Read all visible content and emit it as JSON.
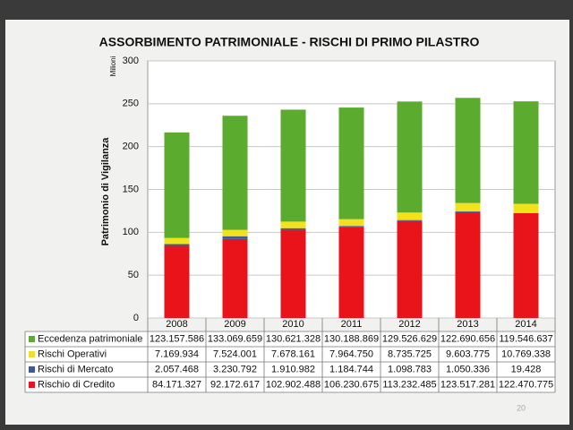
{
  "chart_data": {
    "type": "stacked_bar",
    "title": "ASSORBIMENTO PATRIMONIALE - RISCHI DI PRIMO PILASTRO",
    "y_label": "Patrimonio di Vigilanza",
    "units_label": "Milioni",
    "categories": [
      "2008",
      "2009",
      "2010",
      "2011",
      "2012",
      "2013",
      "2014"
    ],
    "series": [
      {
        "name": "Eccedenza patrimoniale",
        "color": "#5aab2e",
        "values": [
          123.157586,
          133.069659,
          130.621328,
          130.188869,
          129.526629,
          122.690656,
          119.546637
        ],
        "value_labels": [
          "123.157.586",
          "133.069.659",
          "130.621.328",
          "130.188.869",
          "129.526.629",
          "122.690.656",
          "119.546.637"
        ]
      },
      {
        "name": "Rischi Operativi",
        "color": "#f2e21c",
        "values": [
          7.169934,
          7.524001,
          7.678161,
          7.96475,
          8.735725,
          9.603775,
          10.769338
        ],
        "value_labels": [
          "7.169.934",
          "7.524.001",
          "7.678.161",
          "7.964.750",
          "8.735.725",
          "9.603.775",
          "10.769.338"
        ]
      },
      {
        "name": "Rischi di Mercato",
        "color": "#3c5a9a",
        "values": [
          2.057468,
          3.230792,
          1.910982,
          1.184744,
          1.098783,
          1.050336,
          0.019428
        ],
        "value_labels": [
          "2.057.468",
          "3.230.792",
          "1.910.982",
          "1.184.744",
          "1.098.783",
          "1.050.336",
          "19.428"
        ]
      },
      {
        "name": "Rischio di Credito",
        "color": "#e8141a",
        "values": [
          84.171327,
          92.172617,
          102.902488,
          106.230675,
          113.232485,
          123.517281,
          122.470775
        ],
        "value_labels": [
          "84.171.327",
          "92.172.617",
          "102.902.488",
          "106.230.675",
          "113.232.485",
          "123.517.281",
          "122.470.775"
        ]
      }
    ],
    "ylim": [
      0,
      300
    ],
    "yticks": [
      0,
      50,
      100,
      150,
      200,
      250,
      300
    ],
    "grid": true
  },
  "slide_number": "20"
}
